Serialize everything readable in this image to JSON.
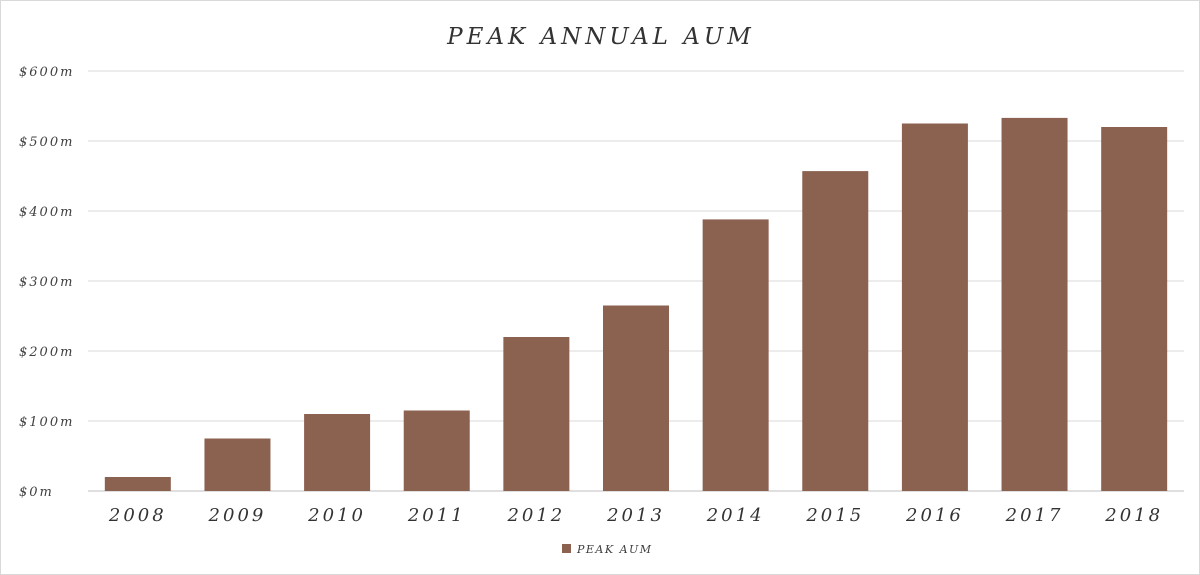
{
  "chart_data": {
    "type": "bar",
    "title": "PEAK ANNUAL AUM",
    "xlabel": "",
    "ylabel": "",
    "categories": [
      "2008",
      "2009",
      "2010",
      "2011",
      "2012",
      "2013",
      "2014",
      "2015",
      "2016",
      "2017",
      "2018"
    ],
    "series": [
      {
        "name": "PEAK AUM",
        "color": "#8b6150",
        "values": [
          20,
          75,
          110,
          115,
          220,
          265,
          388,
          457,
          525,
          533,
          520
        ]
      }
    ],
    "ylim": [
      0,
      600
    ],
    "yticks": [
      0,
      100,
      200,
      300,
      400,
      500,
      600
    ],
    "ytick_labels": [
      "$0m",
      "$100m",
      "$200m",
      "$300m",
      "$400m",
      "$500m",
      "$600m"
    ],
    "grid": true,
    "legend_position": "bottom"
  }
}
